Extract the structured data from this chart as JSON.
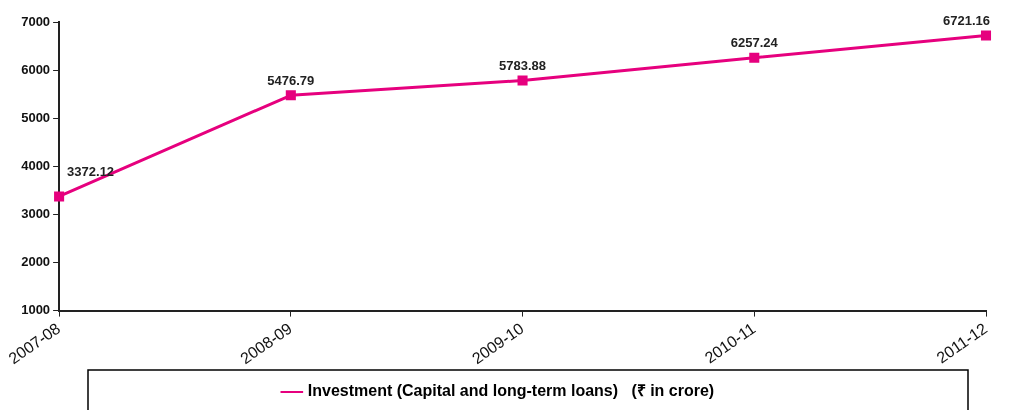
{
  "chart_data": {
    "type": "line",
    "categories": [
      "2007-08",
      "2008-09",
      "2009-10",
      "2010-11",
      "2011-12"
    ],
    "series": [
      {
        "name": "Investment (Capital and long-term loans)   (₹ in crore)",
        "color": "#e6007e",
        "values": [
          3372.12,
          5476.79,
          5783.88,
          6257.24,
          6721.16
        ]
      }
    ],
    "ylim": [
      1000,
      7000
    ],
    "yticks": [
      1000,
      2000,
      3000,
      4000,
      5000,
      6000,
      7000
    ],
    "grid": false,
    "legend": "bottom",
    "marker": "square",
    "line_style": "solid",
    "data_labels": true
  }
}
